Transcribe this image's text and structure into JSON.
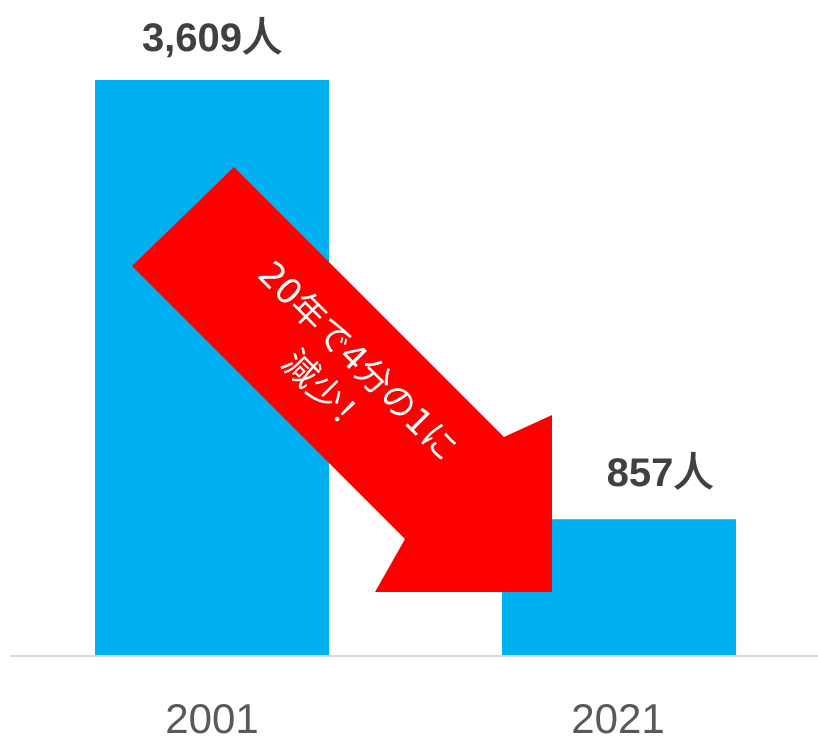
{
  "chart_data": {
    "type": "bar",
    "categories": [
      "2001",
      "2021"
    ],
    "values": [
      3609,
      857
    ],
    "value_labels": [
      "3,609人",
      "857人"
    ],
    "title": "",
    "xlabel": "",
    "ylabel": "",
    "ylim": [
      0,
      3609
    ],
    "grid": false,
    "legend": "none",
    "annotation": {
      "line1": "20年で4分の1に",
      "line2": "減少！"
    }
  },
  "colors": {
    "bar": "#00b0f0",
    "arrow": "#ff0000",
    "axis": "#d9d9d9",
    "value_text": "#404040",
    "tick_text": "#595959"
  }
}
